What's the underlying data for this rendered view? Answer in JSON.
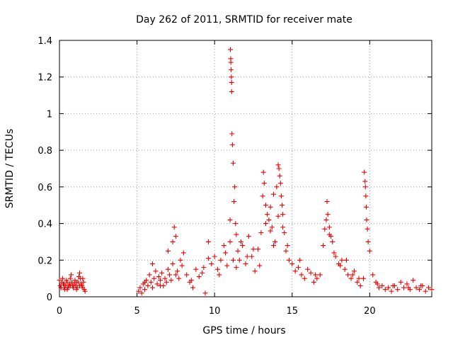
{
  "chart_data": {
    "type": "scatter",
    "title": "Day 262 of 2011, SRMTID for receiver mate",
    "xlabel": "GPS time / hours",
    "ylabel": "SRMTID / TECUs",
    "xlim": [
      0,
      24
    ],
    "ylim": [
      0,
      1.4
    ],
    "x_ticks": [
      0,
      5,
      10,
      15,
      20
    ],
    "y_ticks": [
      0,
      0.2,
      0.4,
      0.6,
      0.8,
      1,
      1.2,
      1.4
    ],
    "x_tick_labels": [
      "0",
      "5",
      "10",
      "15",
      "20"
    ],
    "y_tick_labels": [
      "0",
      "0.2",
      "0.4",
      "0.6",
      "0.8",
      "1",
      "1.2",
      "1.4"
    ],
    "grid": true,
    "marker": "+",
    "series": [
      {
        "name": "SRMTID",
        "color": "#ee0000",
        "x": [
          0.0,
          0.05,
          0.1,
          0.15,
          0.2,
          0.25,
          0.3,
          0.35,
          0.4,
          0.45,
          0.5,
          0.55,
          0.6,
          0.65,
          0.7,
          0.75,
          0.8,
          0.85,
          0.9,
          0.95,
          1.0,
          1.05,
          1.1,
          1.15,
          1.2,
          1.25,
          1.3,
          1.35,
          1.4,
          1.45,
          1.5,
          1.55,
          1.6,
          1.65,
          5.1,
          5.2,
          5.3,
          5.4,
          5.5,
          5.6,
          5.7,
          5.8,
          5.9,
          6.0,
          6.1,
          6.2,
          6.3,
          6.4,
          6.5,
          6.6,
          6.7,
          6.8,
          6.9,
          7.0,
          7.1,
          7.2,
          7.3,
          7.4,
          7.5,
          7.6,
          7.7,
          7.8,
          7.9,
          8.0,
          8.2,
          8.4,
          8.6,
          8.8,
          9.0,
          9.2,
          9.4,
          9.6,
          9.8,
          10.0,
          10.2,
          10.4,
          10.6,
          10.8,
          11.0,
          11.0,
          11.02,
          11.04,
          11.05,
          11.06,
          11.08,
          11.1,
          11.1,
          11.12,
          11.15,
          11.2,
          11.25,
          11.3,
          11.35,
          11.4,
          11.5,
          11.6,
          11.8,
          12.0,
          12.2,
          12.4,
          12.6,
          12.8,
          13.0,
          13.1,
          13.15,
          13.2,
          13.3,
          13.4,
          13.5,
          13.6,
          13.7,
          13.8,
          13.9,
          14.0,
          14.1,
          14.15,
          14.2,
          14.25,
          14.3,
          14.35,
          14.4,
          14.5,
          14.6,
          14.8,
          15.0,
          15.2,
          15.4,
          15.6,
          15.8,
          16.0,
          16.2,
          16.4,
          16.6,
          16.8,
          17.0,
          17.1,
          17.2,
          17.25,
          17.3,
          17.4,
          17.5,
          17.6,
          17.8,
          18.0,
          18.2,
          18.4,
          18.6,
          18.8,
          19.0,
          19.2,
          19.4,
          19.6,
          19.65,
          19.7,
          19.72,
          19.75,
          19.78,
          19.8,
          19.85,
          19.9,
          20.0,
          20.2,
          20.4,
          20.6,
          20.8,
          21.0,
          21.2,
          21.4,
          21.6,
          21.8,
          22.0,
          22.2,
          22.4,
          22.6,
          22.8,
          23.0,
          23.2,
          23.4,
          23.6,
          23.8,
          24.0,
          0.1,
          0.3,
          0.5,
          0.7,
          0.9,
          1.1,
          1.3,
          1.5,
          5.5,
          6.0,
          6.5,
          7.0,
          7.3,
          7.5,
          8.5,
          9.3,
          9.6,
          10.3,
          10.7,
          11.2,
          11.4,
          11.7,
          12.1,
          12.5,
          12.9,
          13.3,
          13.6,
          13.8,
          14.1,
          14.4,
          14.7,
          15.5,
          16.5,
          17.4,
          17.7,
          18.1,
          18.5,
          18.9,
          19.3,
          20.5,
          21.5,
          22.5,
          23.3
        ],
        "y": [
          0.09,
          0.06,
          0.05,
          0.08,
          0.1,
          0.07,
          0.05,
          0.04,
          0.06,
          0.09,
          0.08,
          0.05,
          0.06,
          0.07,
          0.1,
          0.12,
          0.08,
          0.06,
          0.05,
          0.07,
          0.09,
          0.06,
          0.04,
          0.05,
          0.08,
          0.11,
          0.13,
          0.1,
          0.07,
          0.06,
          0.05,
          0.08,
          0.04,
          0.03,
          0.03,
          0.05,
          0.02,
          0.07,
          0.04,
          0.09,
          0.06,
          0.12,
          0.08,
          0.05,
          0.1,
          0.14,
          0.07,
          0.11,
          0.09,
          0.13,
          0.06,
          0.1,
          0.08,
          0.15,
          0.12,
          0.09,
          0.18,
          0.38,
          0.33,
          0.14,
          0.1,
          0.2,
          0.17,
          0.24,
          0.12,
          0.08,
          0.05,
          0.15,
          0.11,
          0.13,
          0.02,
          0.3,
          0.18,
          0.22,
          0.15,
          0.2,
          0.28,
          0.17,
          0.42,
          0.3,
          1.35,
          1.3,
          1.28,
          1.24,
          1.2,
          1.17,
          1.12,
          0.89,
          0.83,
          0.73,
          0.52,
          0.6,
          0.4,
          0.34,
          0.25,
          0.2,
          0.28,
          0.18,
          0.33,
          0.22,
          0.14,
          0.26,
          0.35,
          0.55,
          0.68,
          0.62,
          0.5,
          0.45,
          0.42,
          0.49,
          0.38,
          0.56,
          0.3,
          0.6,
          0.72,
          0.7,
          0.66,
          0.62,
          0.55,
          0.5,
          0.45,
          0.35,
          0.25,
          0.2,
          0.18,
          0.14,
          0.16,
          0.12,
          0.1,
          0.15,
          0.13,
          0.08,
          0.1,
          0.12,
          0.28,
          0.37,
          0.42,
          0.52,
          0.45,
          0.38,
          0.33,
          0.3,
          0.22,
          0.18,
          0.2,
          0.15,
          0.12,
          0.1,
          0.14,
          0.08,
          0.06,
          0.1,
          0.68,
          0.63,
          0.6,
          0.55,
          0.49,
          0.42,
          0.37,
          0.3,
          0.25,
          0.12,
          0.08,
          0.05,
          0.06,
          0.04,
          0.05,
          0.03,
          0.06,
          0.04,
          0.08,
          0.05,
          0.07,
          0.04,
          0.09,
          0.05,
          0.04,
          0.06,
          0.03,
          0.05,
          0.04,
          0.05,
          0.07,
          0.04,
          0.06,
          0.05,
          0.08,
          0.06,
          0.1,
          0.08,
          0.18,
          0.06,
          0.25,
          0.3,
          0.12,
          0.09,
          0.16,
          0.21,
          0.12,
          0.24,
          0.2,
          0.16,
          0.3,
          0.22,
          0.26,
          0.17,
          0.4,
          0.36,
          0.28,
          0.44,
          0.38,
          0.28,
          0.2,
          0.12,
          0.34,
          0.24,
          0.17,
          0.2,
          0.12,
          0.1,
          0.07,
          0.06,
          0.05,
          0.06
        ]
      }
    ]
  }
}
